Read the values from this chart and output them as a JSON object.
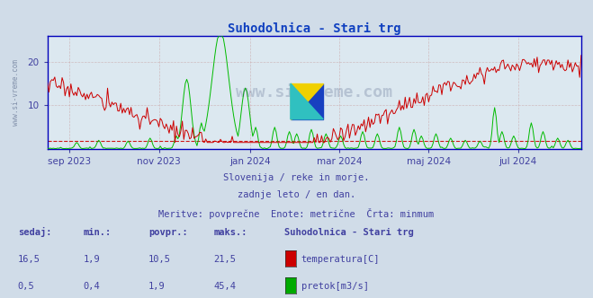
{
  "title": "Suhodolnica - Stari trg",
  "bg_color": "#d0dce8",
  "plot_bg_color": "#dce8f0",
  "grid_color": "#c8a0a0",
  "xlabel_color": "#4040a0",
  "title_color": "#1040c0",
  "watermark_text": "www.si-vreme.com",
  "subtitle_lines": [
    "Slovenija / reke in morje.",
    "zadnje leto / en dan.",
    "Meritve: povprečne  Enote: metrične  Črta: minmum"
  ],
  "table_headers": [
    "sedaj:",
    "min.:",
    "povpr.:",
    "maks.:"
  ],
  "table_station": "Suhodolnica - Stari trg",
  "table_rows": [
    {
      "sedaj": "16,5",
      "min": "1,9",
      "povpr": "10,5",
      "maks": "21,5",
      "color": "#cc0000",
      "label": "temperatura[C]"
    },
    {
      "sedaj": "0,5",
      "min": "0,4",
      "povpr": "1,9",
      "maks": "45,4",
      "color": "#00aa00",
      "label": "pretok[m3/s]"
    }
  ],
  "xticklabels": [
    "sep 2023",
    "nov 2023",
    "jan 2024",
    "mar 2024",
    "maj 2024",
    "jul 2024"
  ],
  "xtick_positions": [
    15,
    76,
    138,
    199,
    260,
    321
  ],
  "total_points": 365,
  "ylim": [
    0,
    26
  ],
  "yticks": [
    10,
    20
  ],
  "temp_color": "#cc0000",
  "flow_color": "#00bb00",
  "temp_min_value": 1.9,
  "spine_color": "#0000bb",
  "left_spine_color": "#0000cc",
  "arrow_color": "#880000"
}
